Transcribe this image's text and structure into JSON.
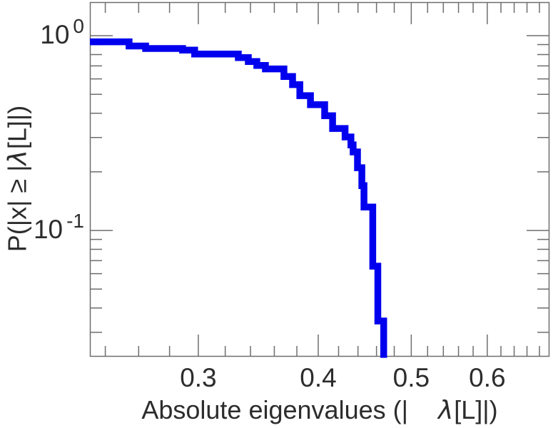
{
  "colors": {
    "background": "#ffffff",
    "curve": "#0000ee",
    "axis": "#6e6e6e",
    "text": "#2c2c2c"
  },
  "chart_data": {
    "type": "line",
    "style": "step-ccdf-staircase",
    "title": "",
    "xlabel": "Absolute eigenvalues (| λ[L]|)",
    "xlabel_parts": {
      "prefix": "Absolute eigenvalues (|",
      "lambda": "λ",
      "suffix": "[L]|)"
    },
    "ylabel": "P(|x| ≥ |λ[L]|)",
    "ylabel_parts": {
      "prefix": "P(|x| ≥ |",
      "lambda": "λ",
      "suffix": "[L]|)"
    },
    "x_scale": "log",
    "y_scale": "log",
    "xlim": [
      0.2313,
      0.6965
    ],
    "ylim": [
      0.0225,
      1.4866
    ],
    "grid": false,
    "legend": null,
    "x_major_ticks": [
      {
        "value": 0.3,
        "label": "0.3"
      },
      {
        "value": 0.4,
        "label": "0.4"
      },
      {
        "value": 0.5,
        "label": "0.5"
      },
      {
        "value": 0.6,
        "label": "0.6"
      }
    ],
    "x_minor_ticks": [
      0.24,
      0.26,
      0.28,
      0.32,
      0.34,
      0.36,
      0.38,
      0.42,
      0.44,
      0.46,
      0.48,
      0.52,
      0.54,
      0.56,
      0.58,
      0.62,
      0.64,
      0.66,
      0.68
    ],
    "y_major_ticks": [
      {
        "value": 1,
        "base": "10",
        "exponent": "0"
      },
      {
        "value": 0.1,
        "base": "10",
        "exponent": "-1"
      }
    ],
    "y_minor_ticks": [
      0.9,
      0.8,
      0.7,
      0.6,
      0.5,
      0.4,
      0.3,
      0.2,
      0.09,
      0.08,
      0.07,
      0.06,
      0.05,
      0.04,
      0.03
    ],
    "series": [
      {
        "name": "eigenvalue-ccdf",
        "color": "#0000ee",
        "line_width": 9.5,
        "steps": [
          [
            0.2313,
            0.93
          ],
          [
            0.2541,
            0.885
          ],
          [
            0.2644,
            0.859
          ],
          [
            0.2889,
            0.843
          ],
          [
            0.2974,
            0.805
          ],
          [
            0.3302,
            0.772
          ],
          [
            0.3382,
            0.737
          ],
          [
            0.3452,
            0.703
          ],
          [
            0.3524,
            0.675
          ],
          [
            0.3684,
            0.617
          ],
          [
            0.3761,
            0.561
          ],
          [
            0.3827,
            0.492
          ],
          [
            0.3926,
            0.442
          ],
          [
            0.4062,
            0.388
          ],
          [
            0.414,
            0.334
          ],
          [
            0.4266,
            0.302
          ],
          [
            0.4326,
            0.275
          ],
          [
            0.4349,
            0.253
          ],
          [
            0.4395,
            0.21
          ],
          [
            0.4441,
            0.17
          ],
          [
            0.4464,
            0.132
          ],
          [
            0.4559,
            0.0656
          ],
          [
            0.4615,
            0.0343
          ],
          [
            0.468,
            0.0222
          ]
        ]
      }
    ]
  }
}
